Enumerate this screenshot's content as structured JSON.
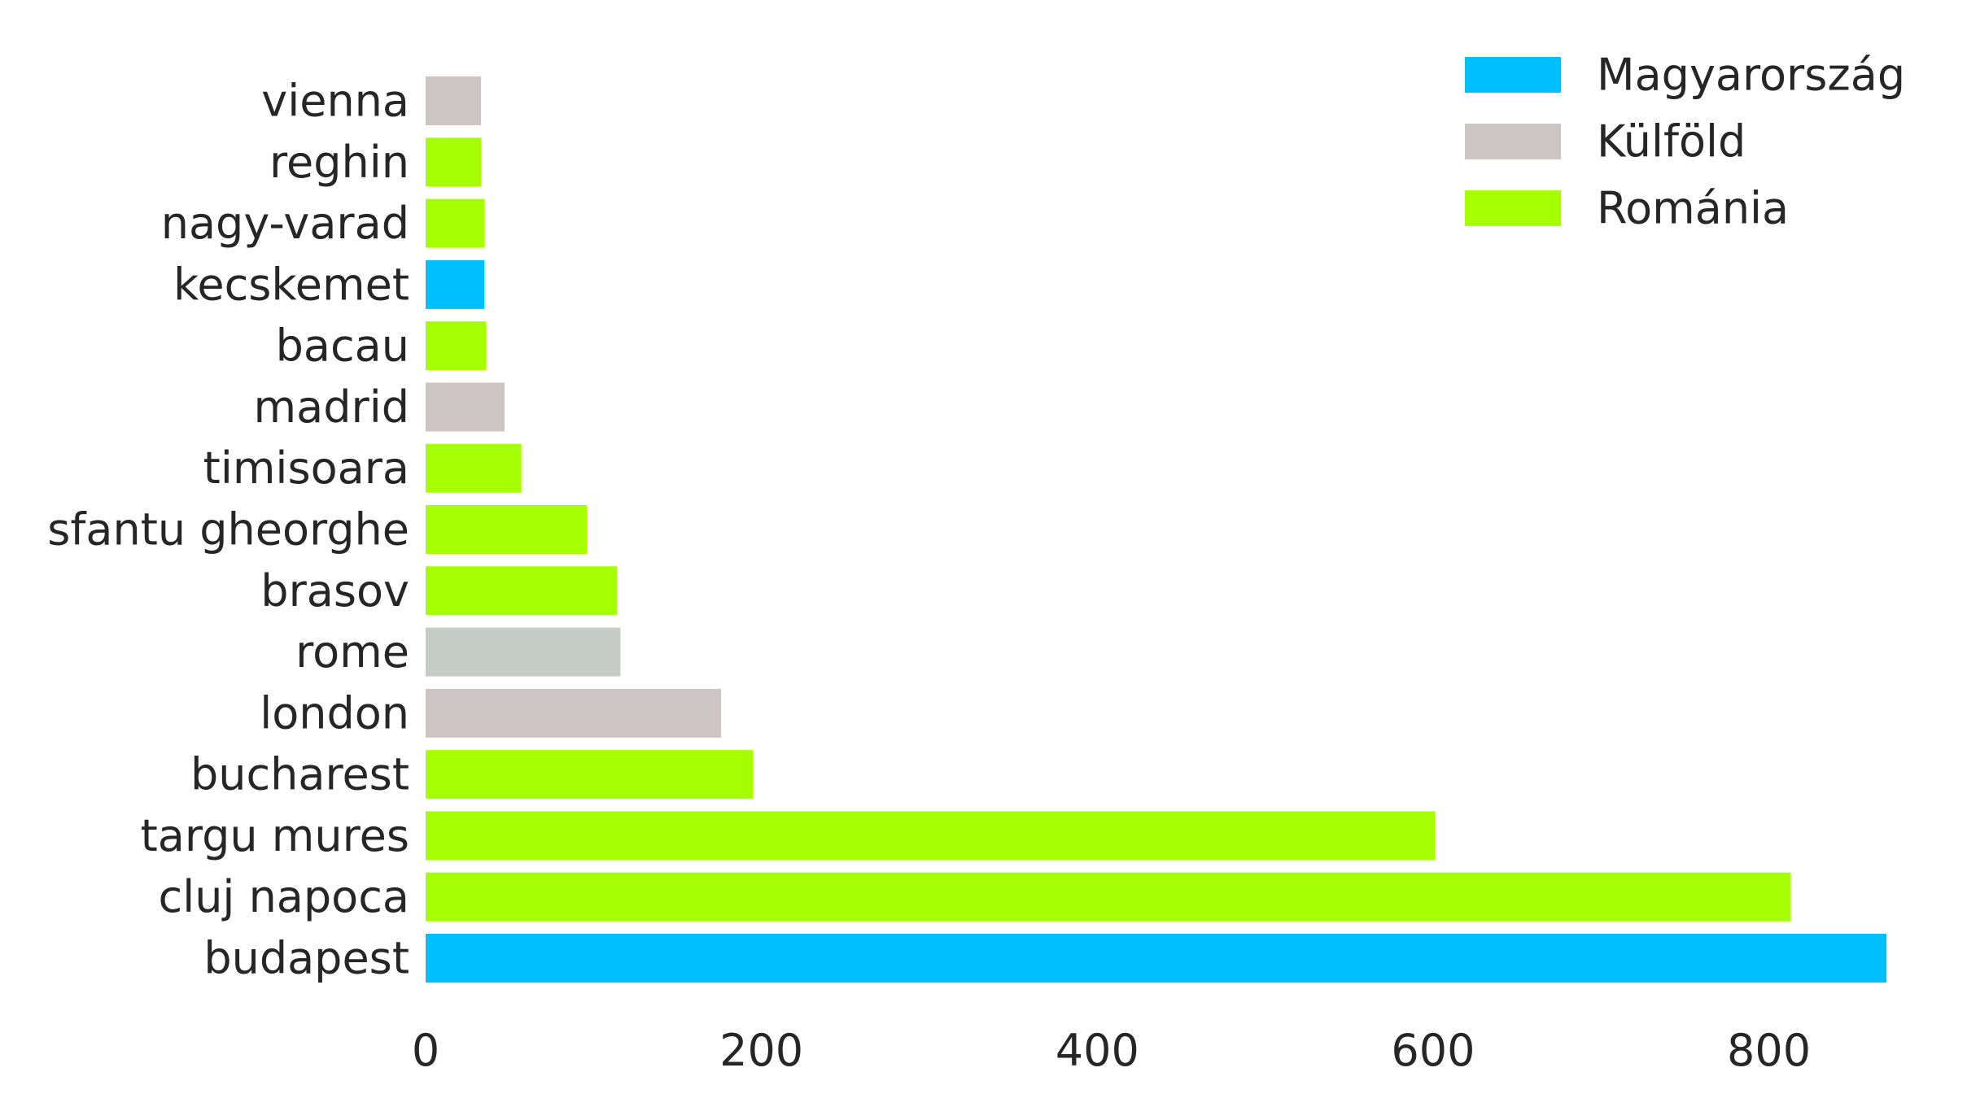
{
  "chart_data": {
    "type": "bar",
    "orientation": "horizontal",
    "title": "",
    "xlabel": "",
    "ylabel": "",
    "xlim": [
      0,
      870
    ],
    "xticks": [
      0,
      200,
      400,
      600,
      800
    ],
    "grid": false,
    "legend_position": "top-right",
    "legend": [
      {
        "label": "Magyarország",
        "color": "#00BFFF"
      },
      {
        "label": "Külföld",
        "color": "#CDC5C3"
      },
      {
        "label": "Románia",
        "color": "#A6FF00"
      }
    ],
    "categories": [
      "budapest",
      "cluj napoca",
      "targu mures",
      "bucharest",
      "london",
      "rome",
      "brasov",
      "sfantu gheorghe",
      "timisoara",
      "madrid",
      "bacau",
      "kecskemet",
      "nagy-varad",
      "reghin",
      "vienna"
    ],
    "values": [
      870,
      813,
      601,
      195,
      176,
      116,
      114,
      96,
      57,
      47,
      36,
      35,
      35,
      33,
      33
    ],
    "colors": [
      "#00BFFF",
      "#A6FF00",
      "#A6FF00",
      "#A6FF00",
      "#CDC5C3",
      "#C5CCC5",
      "#A6FF00",
      "#A6FF00",
      "#A6FF00",
      "#CDC5C3",
      "#A6FF00",
      "#00BFFF",
      "#A6FF00",
      "#A6FF00",
      "#CDC5C3"
    ]
  }
}
